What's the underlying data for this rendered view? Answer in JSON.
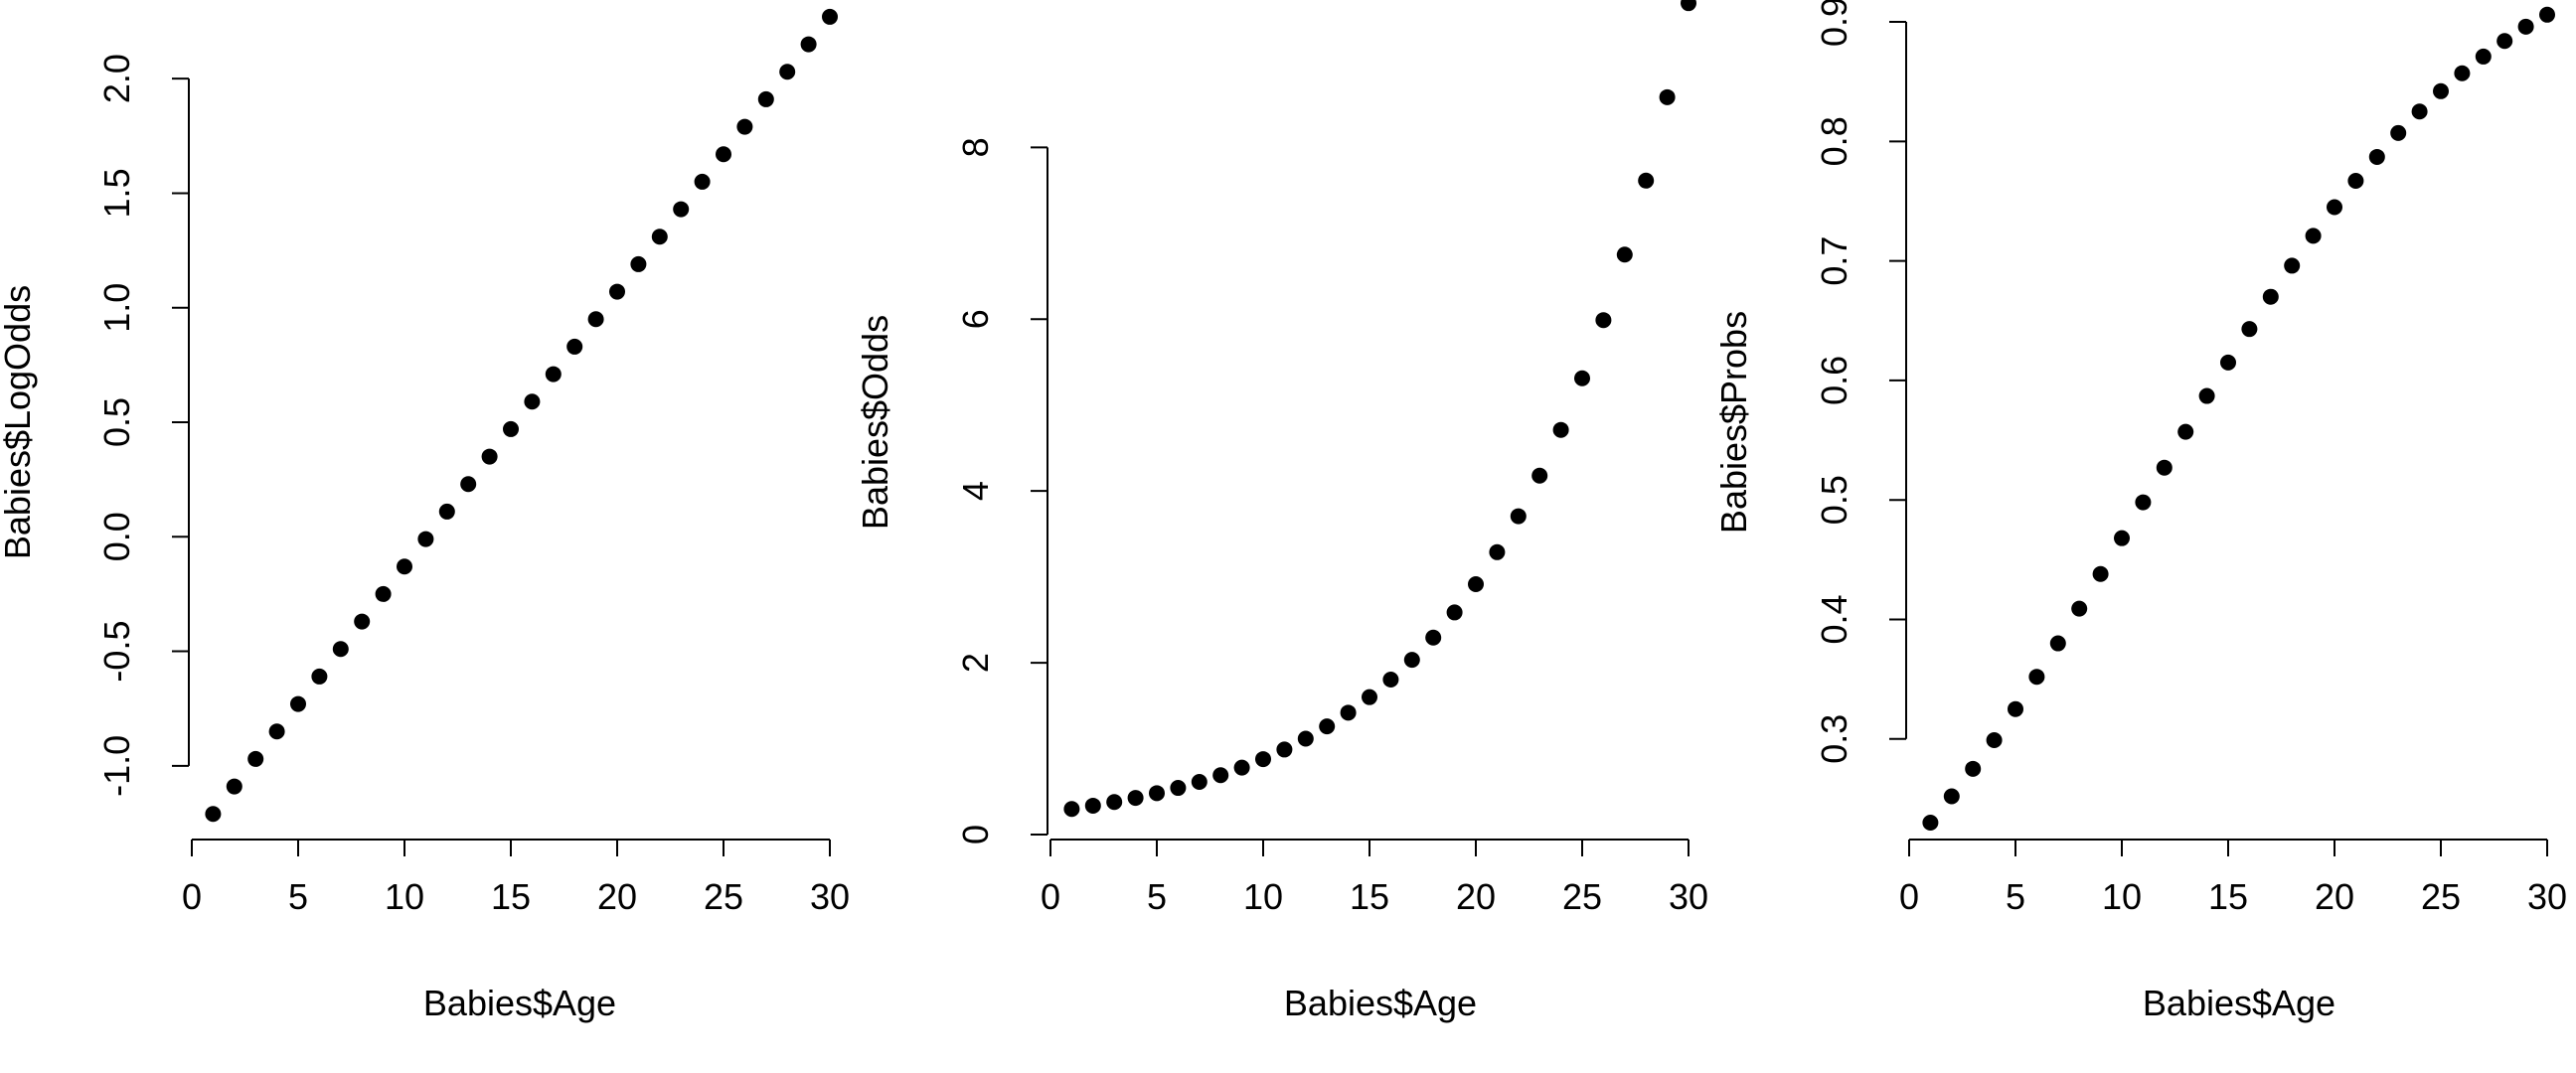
{
  "chart_data": [
    {
      "type": "scatter",
      "title": "",
      "xlabel": "Babies$Age",
      "ylabel": "Babies$LogOdds",
      "xlim": [
        0,
        30
      ],
      "ylim": [
        -1.3,
        2.3
      ],
      "x_ticks": [
        0,
        5,
        10,
        15,
        20,
        25,
        30
      ],
      "x_tick_labels": [
        "0",
        "5",
        "10",
        "15",
        "20",
        "25",
        "30"
      ],
      "y_ticks": [
        -1.0,
        -0.5,
        0.0,
        0.5,
        1.0,
        1.5,
        2.0
      ],
      "y_tick_labels": [
        "-1.0",
        "-0.5",
        "0.0",
        "0.5",
        "1.0",
        "1.5",
        "2.0"
      ],
      "grid": false,
      "marker_color": "#000000",
      "x": [
        1,
        2,
        3,
        4,
        5,
        6,
        7,
        8,
        9,
        10,
        11,
        12,
        13,
        14,
        15,
        16,
        17,
        18,
        19,
        20,
        21,
        22,
        23,
        24,
        25,
        26,
        27,
        28,
        29,
        30
      ],
      "y": [
        -1.21,
        -1.09,
        -0.97,
        -0.85,
        -0.73,
        -0.61,
        -0.49,
        -0.37,
        -0.25,
        -0.13,
        -0.01,
        0.11,
        0.23,
        0.35,
        0.47,
        0.59,
        0.71,
        0.83,
        0.95,
        1.07,
        1.19,
        1.31,
        1.43,
        1.55,
        1.67,
        1.79,
        1.91,
        2.03,
        2.15,
        2.27
      ]
    },
    {
      "type": "scatter",
      "title": "",
      "xlabel": "Babies$Age",
      "ylabel": "Babies$Odds",
      "xlim": [
        0,
        30
      ],
      "ylim": [
        0,
        9.6
      ],
      "x_ticks": [
        0,
        5,
        10,
        15,
        20,
        25,
        30
      ],
      "x_tick_labels": [
        "0",
        "5",
        "10",
        "15",
        "20",
        "25",
        "30"
      ],
      "y_ticks": [
        0,
        2,
        4,
        6,
        8
      ],
      "y_tick_labels": [
        "0",
        "2",
        "4",
        "6",
        "8"
      ],
      "grid": false,
      "marker_color": "#000000",
      "x": [
        1,
        2,
        3,
        4,
        5,
        6,
        7,
        8,
        9,
        10,
        11,
        12,
        13,
        14,
        15,
        16,
        17,
        18,
        19,
        20,
        21,
        22,
        23,
        24,
        25,
        26,
        27,
        28,
        29,
        30
      ],
      "y": [
        0.298,
        0.336,
        0.379,
        0.427,
        0.482,
        0.543,
        0.613,
        0.691,
        0.779,
        0.878,
        0.99,
        1.116,
        1.259,
        1.419,
        1.6,
        1.804,
        2.034,
        2.293,
        2.586,
        2.915,
        3.287,
        3.706,
        4.178,
        4.711,
        5.312,
        5.989,
        6.752,
        7.613,
        8.584,
        9.679
      ]
    },
    {
      "type": "scatter",
      "title": "",
      "xlabel": "Babies$Age",
      "ylabel": "Babies$Probs",
      "xlim": [
        0,
        30
      ],
      "ylim": [
        0.22,
        0.91
      ],
      "x_ticks": [
        0,
        5,
        10,
        15,
        20,
        25,
        30
      ],
      "x_tick_labels": [
        "0",
        "5",
        "10",
        "15",
        "20",
        "25",
        "30"
      ],
      "y_ticks": [
        0.3,
        0.4,
        0.5,
        0.6,
        0.7,
        0.8,
        0.9
      ],
      "y_tick_labels": [
        "0.3",
        "0.4",
        "0.5",
        "0.6",
        "0.7",
        "0.8",
        "0.9"
      ],
      "grid": false,
      "marker_color": "#000000",
      "x": [
        1,
        2,
        3,
        4,
        5,
        6,
        7,
        8,
        9,
        10,
        11,
        12,
        13,
        14,
        15,
        16,
        17,
        18,
        19,
        20,
        21,
        22,
        23,
        24,
        25,
        26,
        27,
        28,
        29,
        30
      ],
      "y": [
        0.23,
        0.252,
        0.275,
        0.299,
        0.325,
        0.352,
        0.38,
        0.409,
        0.438,
        0.468,
        0.498,
        0.527,
        0.557,
        0.587,
        0.615,
        0.643,
        0.67,
        0.696,
        0.721,
        0.745,
        0.767,
        0.787,
        0.807,
        0.825,
        0.842,
        0.857,
        0.871,
        0.884,
        0.896,
        0.906
      ]
    }
  ]
}
